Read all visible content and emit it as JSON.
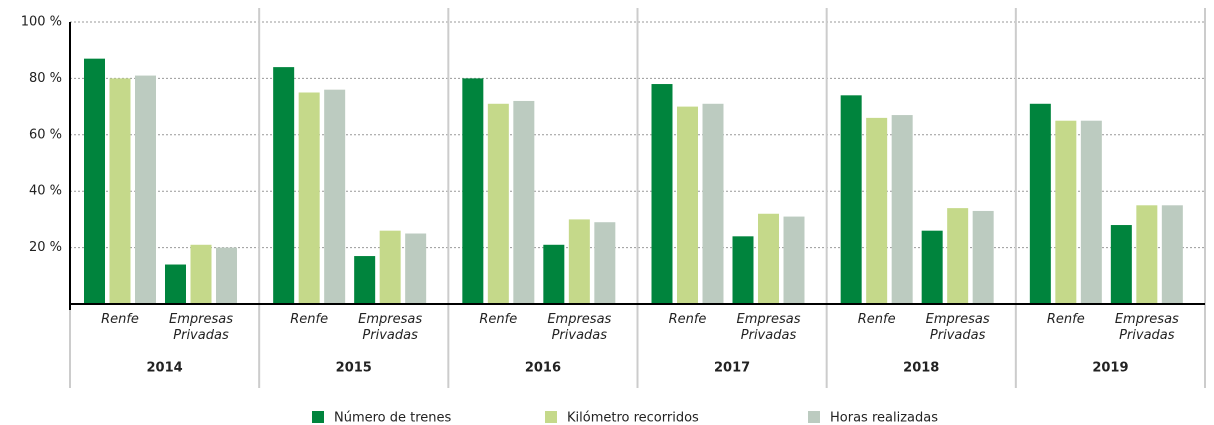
{
  "chart_data": {
    "type": "bar",
    "groups": [
      "2014",
      "2015",
      "2016",
      "2017",
      "2018",
      "2019"
    ],
    "categories": [
      "Renfe",
      "Empresas Privadas",
      "Renfe",
      "Empresas Privadas",
      "Renfe",
      "Empresas Privadas",
      "Renfe",
      "Empresas Privadas",
      "Renfe",
      "Empresas Privadas",
      "Renfe",
      "Empresas Privadas"
    ],
    "series": [
      {
        "name": "Número de trenes",
        "color": "#00843d",
        "values": [
          87,
          14,
          84,
          17,
          80,
          21,
          78,
          24,
          74,
          26,
          71,
          28
        ]
      },
      {
        "name": "Kilómetro recorridos",
        "color": "#c5d98a",
        "values": [
          80,
          21,
          75,
          26,
          71,
          30,
          70,
          32,
          66,
          34,
          65,
          35
        ]
      },
      {
        "name": "Horas realizadas",
        "color": "#bccbc0",
        "values": [
          81,
          20,
          76,
          25,
          72,
          29,
          71,
          31,
          67,
          33,
          65,
          35
        ]
      }
    ],
    "ylim": [
      0,
      100
    ],
    "yticks": [
      {
        "value": 20,
        "label": "20 %"
      },
      {
        "value": 40,
        "label": "40 %"
      },
      {
        "value": 60,
        "label": "60 %"
      },
      {
        "value": 80,
        "label": "80 %"
      },
      {
        "value": 100,
        "label": "100 %"
      }
    ],
    "grid": true,
    "legend": "bottom"
  }
}
